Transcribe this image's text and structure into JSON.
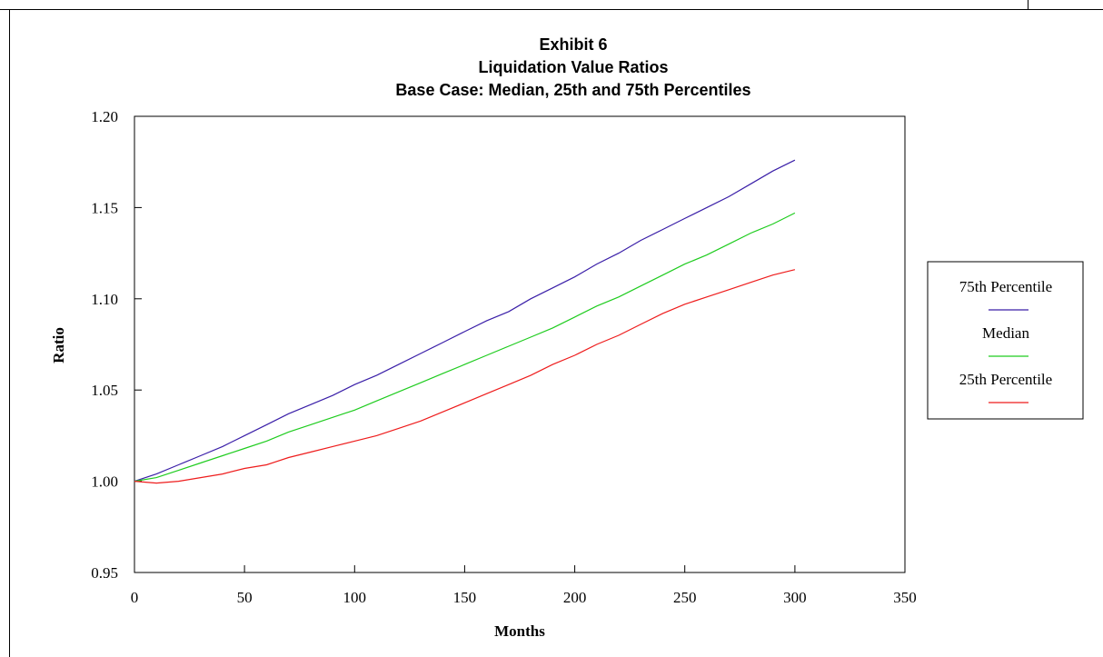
{
  "chart_data": {
    "type": "line",
    "title": [
      "Exhibit 6",
      "Liquidation Value Ratios",
      "Base Case: Median, 25th and 75th Percentiles"
    ],
    "xlabel": "Months",
    "ylabel": "Ratio",
    "xlim": [
      0,
      350
    ],
    "ylim": [
      0.95,
      1.2
    ],
    "x_ticks": [
      "0",
      "50",
      "100",
      "150",
      "200",
      "250",
      "300",
      "350"
    ],
    "y_ticks": [
      "0.95",
      "1.00",
      "1.05",
      "1.10",
      "1.15",
      "1.20"
    ],
    "grid": false,
    "legend_position": "right",
    "x": [
      0,
      10,
      20,
      30,
      40,
      50,
      60,
      70,
      80,
      90,
      100,
      110,
      120,
      130,
      140,
      150,
      160,
      170,
      180,
      190,
      200,
      210,
      220,
      230,
      240,
      250,
      260,
      270,
      280,
      290,
      300
    ],
    "series": [
      {
        "name": "75th Percentile",
        "color": "#3a1fa8",
        "values": [
          1.0,
          1.004,
          1.009,
          1.014,
          1.019,
          1.025,
          1.031,
          1.037,
          1.042,
          1.047,
          1.053,
          1.058,
          1.064,
          1.07,
          1.076,
          1.082,
          1.088,
          1.093,
          1.1,
          1.106,
          1.112,
          1.119,
          1.125,
          1.132,
          1.138,
          1.144,
          1.15,
          1.156,
          1.163,
          1.17,
          1.176
        ]
      },
      {
        "name": "Median",
        "color": "#1fcc1f",
        "values": [
          1.0,
          1.002,
          1.006,
          1.01,
          1.014,
          1.018,
          1.022,
          1.027,
          1.031,
          1.035,
          1.039,
          1.044,
          1.049,
          1.054,
          1.059,
          1.064,
          1.069,
          1.074,
          1.079,
          1.084,
          1.09,
          1.096,
          1.101,
          1.107,
          1.113,
          1.119,
          1.124,
          1.13,
          1.136,
          1.141,
          1.147
        ]
      },
      {
        "name": "25th Percentile",
        "color": "#ee1c1c",
        "values": [
          1.0,
          0.999,
          1.0,
          1.002,
          1.004,
          1.007,
          1.009,
          1.013,
          1.016,
          1.019,
          1.022,
          1.025,
          1.029,
          1.033,
          1.038,
          1.043,
          1.048,
          1.053,
          1.058,
          1.064,
          1.069,
          1.075,
          1.08,
          1.086,
          1.092,
          1.097,
          1.101,
          1.105,
          1.109,
          1.113,
          1.116
        ]
      }
    ]
  }
}
